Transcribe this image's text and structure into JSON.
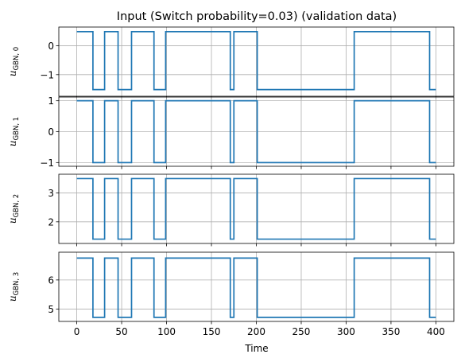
{
  "chart_data": {
    "type": "line",
    "title": "Input (Switch probability=0.03) (validation data)",
    "xlabel": "Time",
    "xlim": [
      -20,
      420
    ],
    "xticks": [
      0,
      50,
      100,
      150,
      200,
      250,
      300,
      350,
      400
    ],
    "grid": true,
    "line_color": "#1f77b4",
    "switch_times": [
      18,
      31,
      46,
      61,
      86,
      99,
      171,
      175,
      201,
      309,
      393
    ],
    "subplots": [
      {
        "ylabel_var": "u",
        "ylabel_sub": "GBN, 0",
        "ylim": [
          -1.75,
          0.65
        ],
        "yticks": [
          "0",
          "−1"
        ],
        "ytick_values": [
          0,
          -1
        ],
        "levels": [
          0.49,
          -1.52
        ]
      },
      {
        "ylabel_var": "u",
        "ylabel_sub": "GBN, 1",
        "ylim": [
          -1.12,
          1.12
        ],
        "yticks": [
          "1",
          "0",
          "−1"
        ],
        "ytick_values": [
          1,
          0,
          -1
        ],
        "levels": [
          1.0,
          -1.0
        ]
      },
      {
        "ylabel_var": "u",
        "ylabel_sub": "GBN, 2",
        "ylim": [
          1.25,
          3.65
        ],
        "yticks": [
          "3",
          "2"
        ],
        "ytick_values": [
          3,
          2
        ],
        "levels": [
          3.5,
          1.4
        ]
      },
      {
        "ylabel_var": "u",
        "ylabel_sub": "GBN, 3",
        "ylim": [
          4.58,
          6.95
        ],
        "yticks": [
          "6",
          "5"
        ],
        "ytick_values": [
          6,
          5
        ],
        "levels": [
          6.75,
          4.72
        ]
      }
    ]
  }
}
